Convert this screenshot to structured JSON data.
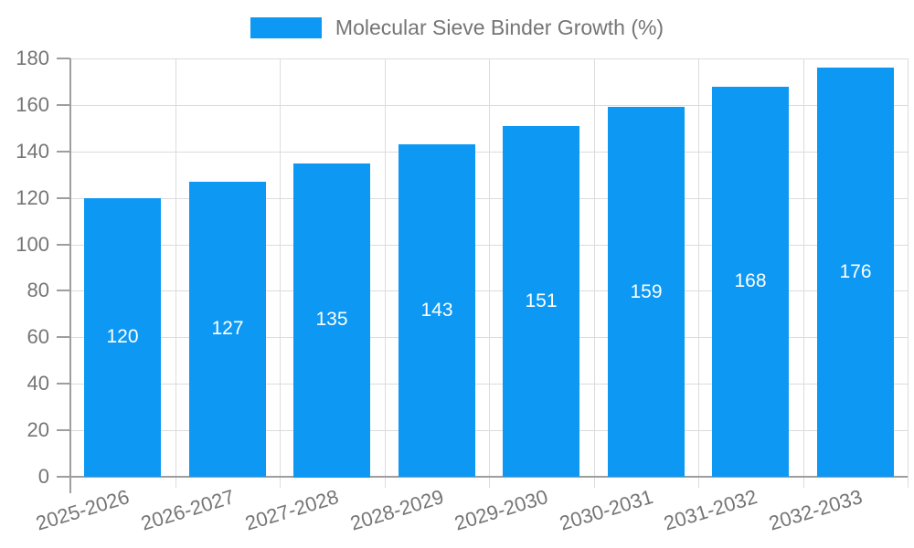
{
  "legend": {
    "label": "Molecular Sieve Binder Growth (%)"
  },
  "chart_data": {
    "type": "bar",
    "title": "Molecular Sieve Binder Growth (%)",
    "series_name": "Molecular Sieve Binder Growth (%)",
    "categories": [
      "2025-2026",
      "2026-2027",
      "2027-2028",
      "2028-2029",
      "2029-2030",
      "2030-2031",
      "2031-2032",
      "2032-2033"
    ],
    "values": [
      120,
      127,
      135,
      143,
      151,
      159,
      168,
      176
    ],
    "xlabel": "",
    "ylabel": "",
    "ylim": [
      0,
      180
    ],
    "yticks": [
      0,
      20,
      40,
      60,
      80,
      100,
      120,
      140,
      160,
      180
    ],
    "grid": true,
    "legend_position": "top",
    "value_label_position": "inside-center",
    "bar_color": "#0d98f4",
    "bar_label_color": "#ffffff",
    "axis_line_color": "#9e9e9e",
    "gridline_color": "#dcdcdc",
    "axis_text_color": "#757575"
  }
}
